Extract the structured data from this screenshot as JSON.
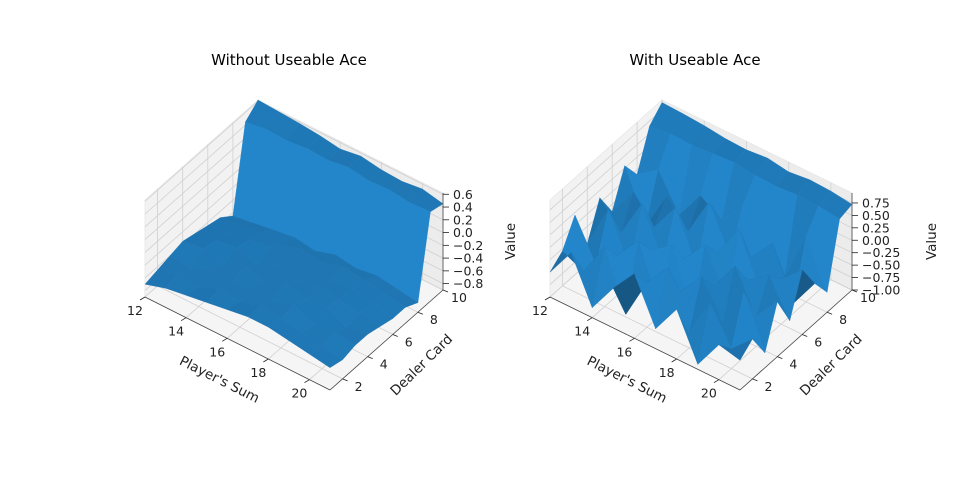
{
  "chart_data": [
    {
      "type": "surface3d",
      "title": "Without Useable Ace",
      "xlabel": "Player's Sum",
      "ylabel": "Dealer Card",
      "zlabel": "Value",
      "xlim": [
        12,
        21
      ],
      "ylim": [
        1,
        10
      ],
      "zlim": [
        -0.9,
        0.62
      ],
      "x_ticks": [
        12,
        14,
        16,
        18,
        20
      ],
      "y_ticks": [
        2,
        4,
        6,
        8,
        10
      ],
      "z_ticks": [
        0.6,
        0.4,
        0.2,
        0.0,
        -0.2,
        -0.4,
        -0.6,
        -0.8
      ],
      "z_tick_labels": [
        "0.6",
        "0.4",
        "0.2",
        "0.0",
        "−0.2",
        "−0.4",
        "−0.6",
        "−0.8"
      ],
      "surface_color": "#1f77b4",
      "x": [
        12,
        13,
        14,
        15,
        16,
        17,
        18,
        19,
        20,
        21
      ],
      "y": [
        1,
        2,
        3,
        4,
        5,
        6,
        7,
        8,
        9,
        10
      ],
      "z": [
        [
          -0.7,
          -0.6,
          -0.55,
          -0.5,
          -0.45,
          -0.4,
          -0.4,
          -0.45,
          -0.5,
          -0.55
        ],
        [
          -0.65,
          -0.55,
          -0.6,
          -0.45,
          -0.5,
          -0.4,
          -0.45,
          -0.5,
          -0.55,
          -0.6
        ],
        [
          -0.6,
          -0.65,
          -0.5,
          -0.55,
          -0.45,
          -0.5,
          -0.4,
          -0.55,
          -0.5,
          -0.55
        ],
        [
          -0.55,
          -0.5,
          -0.6,
          -0.45,
          -0.55,
          -0.4,
          -0.5,
          -0.45,
          -0.6,
          -0.55
        ],
        [
          -0.6,
          -0.55,
          -0.5,
          -0.6,
          -0.45,
          -0.55,
          -0.45,
          -0.5,
          -0.55,
          -0.6
        ],
        [
          -0.65,
          -0.6,
          -0.55,
          -0.5,
          -0.6,
          -0.5,
          -0.55,
          -0.5,
          -0.55,
          -0.65
        ],
        [
          -0.7,
          -0.65,
          -0.6,
          -0.65,
          -0.55,
          -0.6,
          -0.5,
          -0.55,
          -0.6,
          -0.65
        ],
        [
          -0.85,
          -0.8,
          -0.75,
          -0.7,
          -0.75,
          -0.65,
          -0.7,
          -0.65,
          -0.7,
          -0.75
        ],
        [
          0.45,
          0.5,
          0.48,
          0.52,
          0.5,
          0.55,
          0.5,
          0.52,
          0.48,
          0.5
        ],
        [
          0.62,
          0.6,
          0.58,
          0.55,
          0.5,
          0.55,
          0.5,
          0.48,
          0.52,
          0.45
        ]
      ]
    },
    {
      "type": "surface3d",
      "title": "With Useable Ace",
      "xlabel": "Player's Sum",
      "ylabel": "Dealer Card",
      "zlabel": "Value",
      "xlim": [
        12,
        21
      ],
      "ylim": [
        1,
        10
      ],
      "zlim": [
        -1.0,
        0.95
      ],
      "x_ticks": [
        12,
        14,
        16,
        18,
        20
      ],
      "y_ticks": [
        2,
        4,
        6,
        8,
        10
      ],
      "z_ticks": [
        0.75,
        0.5,
        0.25,
        0.0,
        -0.25,
        -0.5,
        -0.75,
        -1.0
      ],
      "z_tick_labels": [
        "0.75",
        "0.50",
        "0.25",
        "0.00",
        "−0.25",
        "−0.50",
        "−0.75",
        "−1.00"
      ],
      "surface_color": "#1f77b4",
      "x": [
        12,
        13,
        14,
        15,
        16,
        17,
        18,
        19,
        20,
        21
      ],
      "y": [
        1,
        2,
        3,
        4,
        5,
        6,
        7,
        8,
        9,
        10
      ],
      "z": [
        [
          -0.5,
          0.1,
          -0.8,
          -0.2,
          0.3,
          -0.6,
          0.0,
          -0.9,
          -0.3,
          -0.4
        ],
        [
          -0.3,
          -0.5,
          0.2,
          -0.95,
          -0.1,
          0.4,
          -0.7,
          0.1,
          -0.6,
          -0.2
        ],
        [
          0.2,
          -0.6,
          -0.2,
          0.3,
          -0.8,
          -0.3,
          0.2,
          -0.5,
          0.3,
          -0.7
        ],
        [
          -0.6,
          0.3,
          -0.7,
          -0.1,
          0.2,
          -0.9,
          -0.2,
          0.4,
          -0.4,
          0.1
        ],
        [
          0.1,
          -0.4,
          0.4,
          -0.6,
          -0.3,
          0.2,
          -0.7,
          -0.1,
          0.2,
          -0.5
        ],
        [
          -0.4,
          0.2,
          -0.3,
          0.3,
          -0.7,
          -0.2,
          0.5,
          -0.6,
          -0.1,
          0.3
        ],
        [
          0.3,
          -0.7,
          0.1,
          -0.4,
          0.4,
          -0.5,
          -0.3,
          0.2,
          -0.8,
          -0.2
        ],
        [
          -0.1,
          0.2,
          -0.5,
          0.1,
          -0.2,
          0.3,
          -0.4,
          -0.7,
          0.3,
          -0.6
        ],
        [
          0.65,
          0.7,
          0.68,
          0.72,
          0.75,
          0.7,
          0.68,
          0.72,
          0.7,
          0.65
        ],
        [
          0.9,
          0.88,
          0.85,
          0.8,
          0.78,
          0.82,
          0.75,
          0.8,
          0.78,
          0.72
        ]
      ]
    }
  ]
}
